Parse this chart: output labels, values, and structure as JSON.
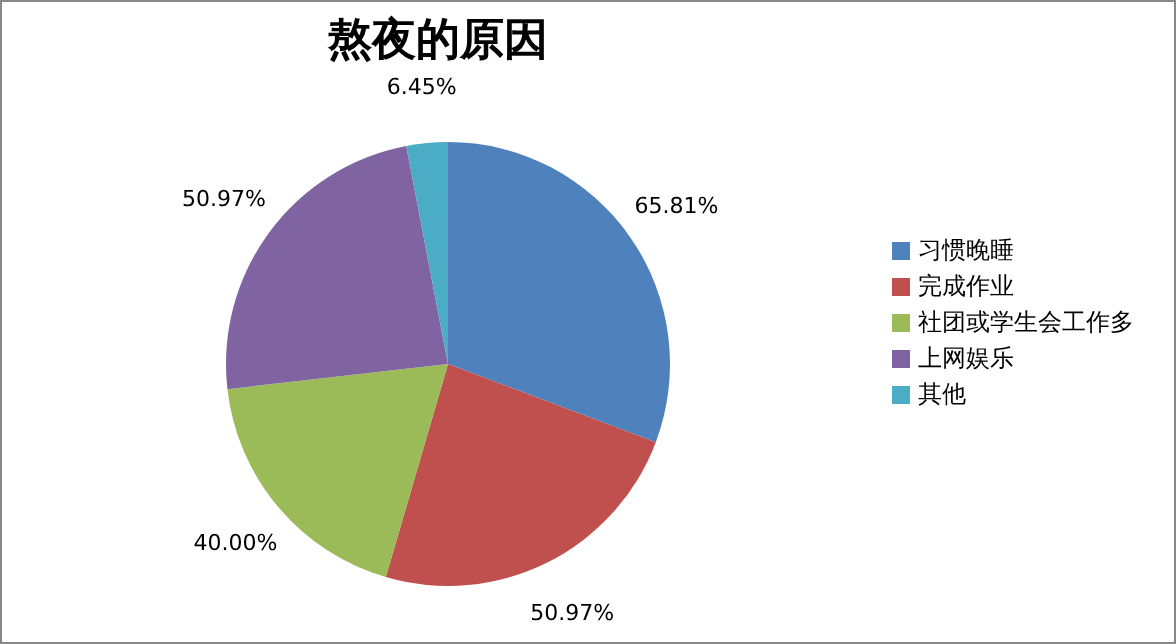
{
  "chart_data": {
    "type": "pie",
    "title": "熬夜的原因",
    "categories": [
      "习惯晚睡",
      "完成作业",
      "社团或学生会工作多",
      "上网娱乐",
      "其他"
    ],
    "values": [
      65.81,
      50.97,
      40.0,
      50.97,
      6.45
    ],
    "value_labels": [
      "65.81%",
      "50.97%",
      "40.00%",
      "50.97%",
      "6.45%"
    ],
    "colors": [
      "#4f81bd",
      "#c0504d",
      "#9bbb59",
      "#8064a2",
      "#4bacc6"
    ],
    "legend": "right"
  }
}
